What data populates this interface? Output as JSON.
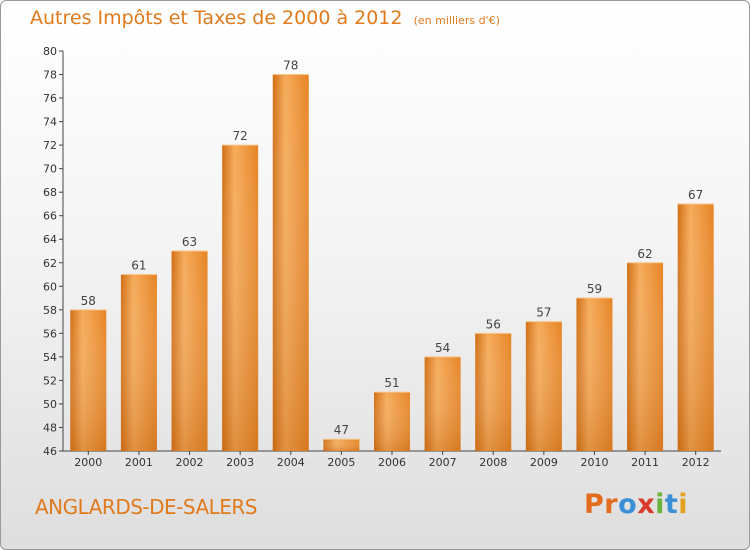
{
  "header": {
    "title": "Autres Impôts et Taxes de 2000 à 2012",
    "unit": "(en milliers d'€)"
  },
  "footer": {
    "commune": "ANGLARDS-DE-SALERS",
    "logo": [
      "P",
      "r",
      "o",
      "x",
      "i",
      "t",
      "i"
    ],
    "logo_colors": [
      "#e36b1c",
      "#e36b1c",
      "#3a8fd6",
      "#d93a2a",
      "#6bb33a",
      "#3a8fd6",
      "#e3a21c"
    ]
  },
  "chart_data": {
    "type": "bar",
    "title": "Autres Impôts et Taxes de 2000 à 2012",
    "subtitle": "(en milliers d'€)",
    "xlabel": "",
    "ylabel": "",
    "categories": [
      "2000",
      "2001",
      "2002",
      "2003",
      "2004",
      "2005",
      "2006",
      "2007",
      "2008",
      "2009",
      "2010",
      "2011",
      "2012"
    ],
    "values": [
      58,
      61,
      63,
      72,
      78,
      47,
      51,
      54,
      56,
      57,
      59,
      62,
      67
    ],
    "ylim": [
      46,
      80
    ],
    "yticks": [
      46,
      48,
      50,
      52,
      54,
      56,
      58,
      60,
      62,
      64,
      66,
      68,
      70,
      72,
      74,
      76,
      78,
      80
    ],
    "grid": false,
    "bar_color": "#f0902e",
    "bar_color_light": "#f6ac5c",
    "bar_color_dark": "#d16f14"
  }
}
